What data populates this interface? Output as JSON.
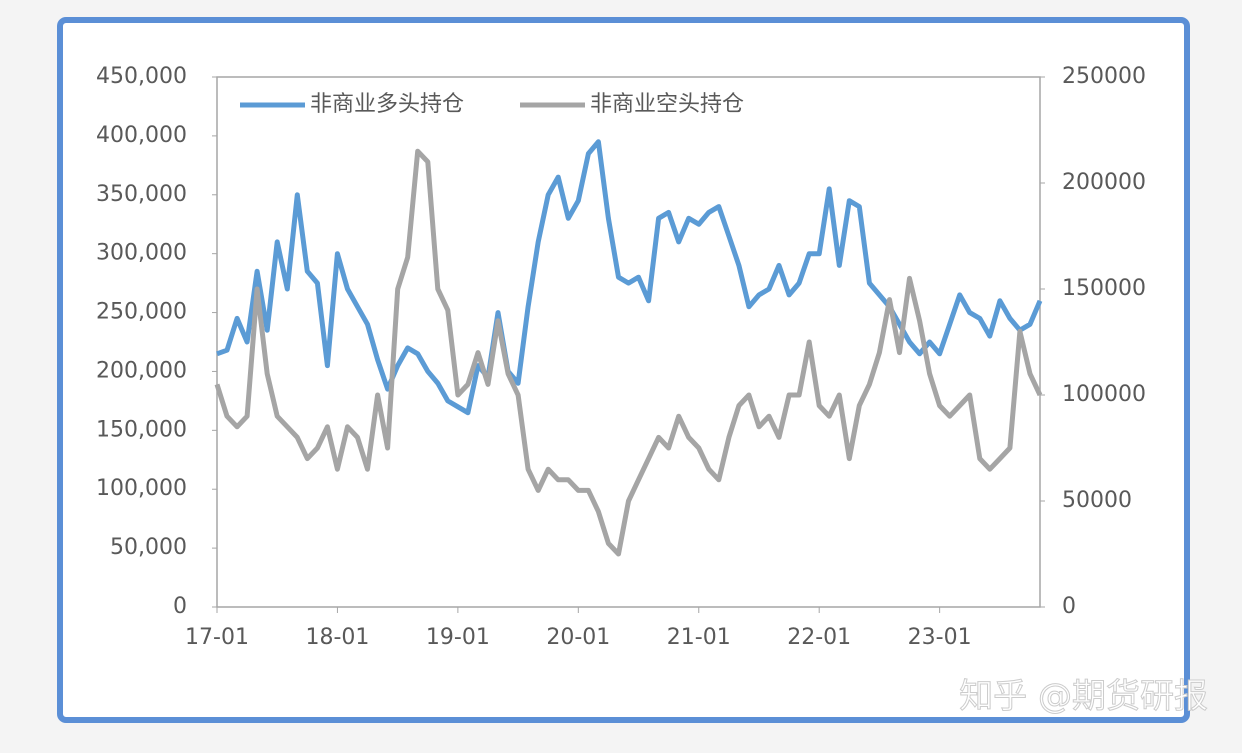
{
  "chart_data": {
    "type": "line",
    "categories": [
      "17-01",
      null,
      null,
      null,
      null,
      null,
      null,
      null,
      null,
      null,
      null,
      null,
      "18-01",
      null,
      null,
      null,
      null,
      null,
      null,
      null,
      null,
      null,
      null,
      null,
      "19-01",
      null,
      null,
      null,
      null,
      null,
      null,
      null,
      null,
      null,
      null,
      null,
      "20-01",
      null,
      null,
      null,
      null,
      null,
      null,
      null,
      null,
      null,
      null,
      null,
      "21-01",
      null,
      null,
      null,
      null,
      null,
      null,
      null,
      null,
      null,
      null,
      null,
      "22-01",
      null,
      null,
      null,
      null,
      null,
      null,
      null,
      null,
      null,
      null,
      null,
      "23-01",
      null,
      null,
      null,
      null,
      null,
      null,
      null,
      null,
      null,
      null
    ],
    "ylim": [
      0,
      450000
    ],
    "yticks": [
      {
        "value": 0,
        "label": "0"
      },
      {
        "value": 50000,
        "label": "50,000"
      },
      {
        "value": 100000,
        "label": "100,000"
      },
      {
        "value": 150000,
        "label": "150,000"
      },
      {
        "value": 200000,
        "label": "200,000"
      },
      {
        "value": 250000,
        "label": "250,000"
      },
      {
        "value": 300000,
        "label": "300,000"
      },
      {
        "value": 350000,
        "label": "350,000"
      },
      {
        "value": 400000,
        "label": "400,000"
      },
      {
        "value": 450000,
        "label": "450,000"
      }
    ],
    "y2lim": [
      0,
      250000
    ],
    "y2ticks": [
      0,
      50000,
      100000,
      150000,
      200000,
      250000
    ],
    "legend": "top-left",
    "series": [
      {
        "name": "非商业多头持仓",
        "color": "#5b9bd5",
        "values": [
          215000,
          218000,
          245000,
          225000,
          285000,
          235000,
          310000,
          270000,
          350000,
          285000,
          275000,
          205000,
          300000,
          270000,
          255000,
          240000,
          210000,
          185000,
          205000,
          220000,
          215000,
          200000,
          190000,
          175000,
          170000,
          165000,
          205000,
          195000,
          250000,
          200000,
          190000,
          255000,
          310000,
          350000,
          365000,
          330000,
          345000,
          385000,
          395000,
          330000,
          280000,
          275000,
          280000,
          260000,
          330000,
          335000,
          310000,
          330000,
          325000,
          335000,
          340000,
          315000,
          290000,
          255000,
          265000,
          270000,
          290000,
          265000,
          275000,
          300000,
          300000,
          355000,
          290000,
          345000,
          340000,
          275000,
          265000,
          255000,
          240000,
          225000,
          215000,
          225000,
          215000,
          240000,
          265000,
          250000,
          245000,
          230000,
          260000,
          245000,
          235000,
          240000,
          260000
        ]
      },
      {
        "name": "非商业空头持仓",
        "color": "#a5a5a5",
        "axis": "y2",
        "values": [
          105000,
          90000,
          85000,
          90000,
          150000,
          110000,
          90000,
          85000,
          80000,
          70000,
          75000,
          85000,
          65000,
          85000,
          80000,
          65000,
          100000,
          75000,
          150000,
          165000,
          215000,
          210000,
          150000,
          140000,
          100000,
          105000,
          120000,
          105000,
          135000,
          110000,
          100000,
          65000,
          55000,
          65000,
          60000,
          60000,
          55000,
          55000,
          45000,
          30000,
          25000,
          50000,
          60000,
          70000,
          80000,
          75000,
          90000,
          80000,
          75000,
          65000,
          60000,
          80000,
          95000,
          100000,
          85000,
          90000,
          80000,
          100000,
          100000,
          125000,
          95000,
          90000,
          100000,
          70000,
          95000,
          105000,
          120000,
          145000,
          120000,
          155000,
          135000,
          110000,
          95000,
          90000,
          95000,
          100000,
          70000,
          65000,
          70000,
          75000,
          130000,
          110000,
          100000
        ]
      }
    ],
    "watermark": "知乎 @期货研报"
  }
}
